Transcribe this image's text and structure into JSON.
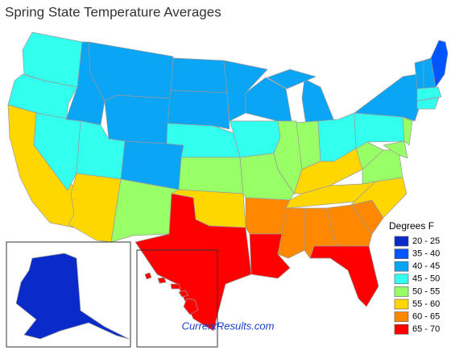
{
  "title": "Spring State Temperature Averages",
  "legend": {
    "title": "Degrees F",
    "items": [
      {
        "label": "20 - 25",
        "color": "#0a2bc9"
      },
      {
        "label": "35 - 40",
        "color": "#0055ff"
      },
      {
        "label": "40 - 45",
        "color": "#0aa5f5"
      },
      {
        "label": "45 - 50",
        "color": "#33ffee"
      },
      {
        "label": "50 - 55",
        "color": "#99ff66"
      },
      {
        "label": "55 - 60",
        "color": "#ffd700"
      },
      {
        "label": "60 - 65",
        "color": "#ff8800"
      },
      {
        "label": "65 - 70",
        "color": "#ff0000"
      }
    ]
  },
  "footer": "CurrentResults.com"
}
